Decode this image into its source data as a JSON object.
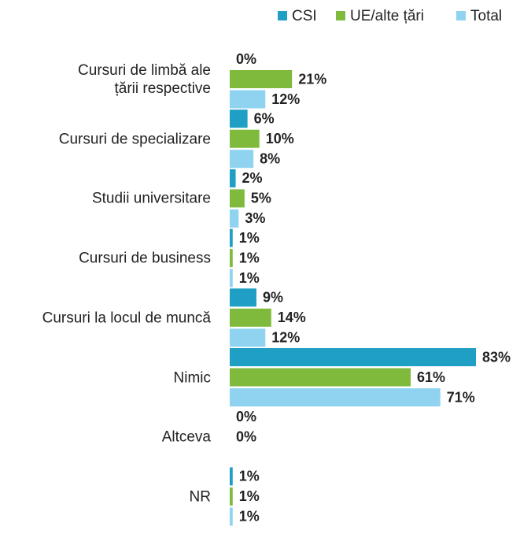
{
  "chart_data": {
    "type": "hbar",
    "categories": [
      "Cursuri de limbă ale\nțării respective",
      "Cursuri de specializare",
      "Studii universitare",
      "Cursuri de business",
      "Cursuri la locul de muncă",
      "Nimic",
      "Altceva",
      "NR"
    ],
    "series": [
      {
        "name": "CSI",
        "color": "#1f9fc4",
        "values": [
          0,
          6,
          2,
          1,
          9,
          83,
          0,
          1
        ],
        "value_labels": [
          "0%",
          "6%",
          "2%",
          "1%",
          "9%",
          "83%",
          "0%",
          "1%"
        ]
      },
      {
        "name": "UE/alte țări",
        "color": "#7fba3c",
        "values": [
          21,
          10,
          5,
          1,
          14,
          61,
          0,
          1
        ],
        "value_labels": [
          "21%",
          "10%",
          "5%",
          "1%",
          "14%",
          "61%",
          "0%",
          "1%"
        ]
      },
      {
        "name": "Total",
        "color": "#8fd3f0",
        "values": [
          12,
          8,
          3,
          1,
          12,
          71,
          null,
          1
        ],
        "value_labels": [
          "12%",
          "8%",
          "3%",
          "1%",
          "12%",
          "71%",
          null,
          "1%"
        ]
      }
    ],
    "legend": "top-right"
  }
}
